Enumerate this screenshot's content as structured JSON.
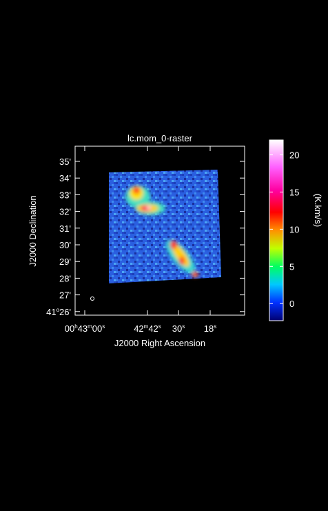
{
  "title": "lc.mom_0-raster",
  "x_axis": {
    "label": "J2000 Right Ascension",
    "ticks": [
      [
        "00",
        "h",
        "43",
        "m",
        "00",
        "s"
      ],
      [
        "42",
        "m",
        "42",
        "s"
      ],
      [
        "30",
        "s"
      ],
      [
        "18",
        "s"
      ]
    ]
  },
  "y_axis": {
    "label": "J2000 Declination",
    "ticks": [
      [
        "35'"
      ],
      [
        "34'"
      ],
      [
        "33'"
      ],
      [
        "32'"
      ],
      [
        "31'"
      ],
      [
        "30'"
      ],
      [
        "29'"
      ],
      [
        "28'"
      ],
      [
        "27'"
      ],
      [
        "41",
        "o",
        "26'"
      ]
    ]
  },
  "colorbar": {
    "label": "(K.km/s)",
    "clim": [
      -2.3,
      22
    ],
    "ticks": [
      0,
      5,
      10,
      15,
      20
    ]
  }
}
